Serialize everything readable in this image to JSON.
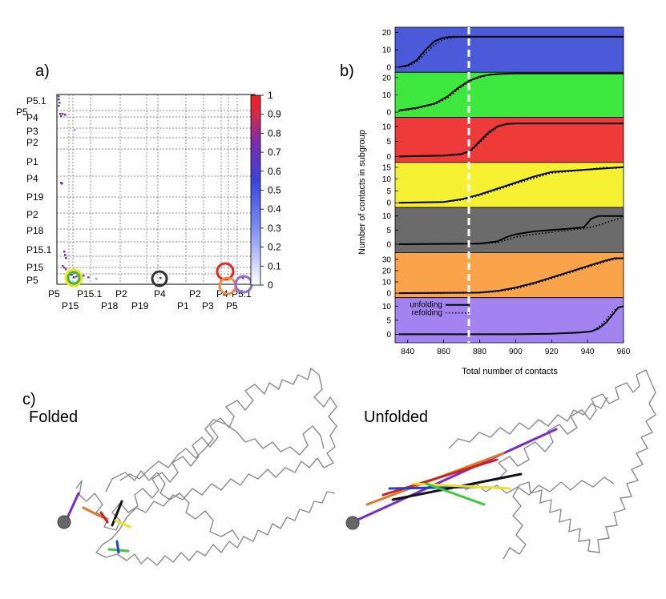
{
  "panel_labels": {
    "a": "a)",
    "b": "b)",
    "c": "c)"
  },
  "panel_a": {
    "y_labels": [
      {
        "text": "P5.1"
      },
      {
        "text": "P5"
      },
      {
        "text": "P4"
      },
      {
        "text": "P3"
      },
      {
        "text": "P2"
      },
      {
        "text": "P1"
      },
      {
        "text": "P4"
      },
      {
        "text": "P19"
      },
      {
        "text": "P2"
      },
      {
        "text": "P18"
      },
      {
        "text": "P15.1"
      },
      {
        "text": "P15"
      },
      {
        "text": "P5"
      }
    ],
    "x_labels_row1": [
      "P5",
      "P15.1",
      "P2",
      "P4",
      "P2",
      "P4",
      "P5.1"
    ],
    "x_labels_row2": [
      "P15",
      "P18",
      "P19",
      "P1",
      "P3",
      "P5"
    ],
    "colorbar_ticks": [
      "1",
      "0.9",
      "0.8",
      "0.7",
      "0.6",
      "0.5",
      "0.4",
      "0.3",
      "0.2",
      "0.1",
      "0"
    ],
    "circle_colors": [
      "#f2e21b",
      "#39b54a",
      "#333333",
      "#e8231d",
      "#f08a3c",
      "#8e6ad8"
    ]
  },
  "chart_data": {
    "type": "line",
    "xlabel": "Total number of contacts",
    "ylabel": "Number of contacts in subgroup",
    "xlim": [
      833,
      960
    ],
    "x_ticks": [
      "840",
      "860",
      "880",
      "900",
      "920",
      "940",
      "960"
    ],
    "vline_x": 874,
    "legend": {
      "unfolding": "unfolding",
      "refolding": "refolding"
    },
    "panels": [
      {
        "color": "#4a5ad8",
        "ylim": [
          -3,
          23
        ],
        "yticks": [
          "0",
          "10",
          "20"
        ],
        "ytick_values": [
          0,
          10,
          20
        ],
        "unfolding": {
          "x": [
            835,
            840,
            845,
            850,
            855,
            860,
            865,
            870,
            960
          ],
          "y": [
            0,
            1,
            4,
            10,
            15,
            17,
            17.5,
            17.5,
            17.5
          ]
        },
        "refolding": {
          "x": [
            835,
            840,
            845,
            850,
            855,
            860,
            865,
            870,
            960
          ],
          "y": [
            0,
            0.5,
            3,
            8,
            13,
            16,
            17,
            17.5,
            17.5
          ]
        }
      },
      {
        "color": "#3ee83e",
        "ylim": [
          -3,
          23
        ],
        "yticks": [
          "0",
          "10",
          "20"
        ],
        "ytick_values": [
          0,
          10,
          20
        ],
        "unfolding": {
          "x": [
            835,
            845,
            855,
            862,
            868,
            874,
            880,
            885,
            890,
            900,
            960
          ],
          "y": [
            1,
            2.5,
            5,
            9,
            14,
            18,
            20.5,
            21.5,
            22,
            22.3,
            22.3
          ]
        },
        "refolding": {
          "x": [
            835,
            845,
            855,
            862,
            868,
            874,
            880,
            885,
            890,
            900,
            960
          ],
          "y": [
            0.5,
            2,
            4.5,
            8,
            13,
            17.5,
            20,
            21.5,
            22,
            22.3,
            22.3
          ]
        }
      },
      {
        "color": "#ee3a38",
        "ylim": [
          -2,
          13
        ],
        "yticks": [
          "0",
          "5",
          "10"
        ],
        "ytick_values": [
          0,
          5,
          10
        ],
        "unfolding": {
          "x": [
            835,
            860,
            870,
            875,
            880,
            885,
            890,
            895,
            900,
            960
          ],
          "y": [
            0,
            0.3,
            0.8,
            2,
            5,
            8,
            10,
            10.8,
            11,
            11
          ]
        },
        "refolding": {
          "x": [
            835,
            860,
            870,
            875,
            880,
            885,
            890,
            895,
            900,
            960
          ],
          "y": [
            0,
            0.2,
            0.6,
            1.8,
            4.5,
            7.5,
            9.8,
            10.8,
            11,
            11
          ]
        }
      },
      {
        "color": "#f5f032",
        "ylim": [
          -2,
          17
        ],
        "yticks": [
          "0",
          "5",
          "10",
          "15"
        ],
        "ytick_values": [
          0,
          5,
          10,
          15
        ],
        "unfolding": {
          "x": [
            835,
            860,
            870,
            880,
            890,
            900,
            910,
            920,
            930,
            940,
            950,
            955,
            960
          ],
          "y": [
            0,
            0.3,
            1.5,
            3.5,
            6,
            8.5,
            11,
            13,
            13.5,
            14,
            14.5,
            14.8,
            15
          ]
        },
        "refolding": {
          "x": [
            835,
            860,
            870,
            880,
            890,
            900,
            910,
            920,
            930,
            940,
            950,
            955,
            960
          ],
          "y": [
            0,
            0.3,
            1.2,
            3,
            5.5,
            8,
            10.3,
            12.5,
            13.2,
            14,
            15,
            14.5,
            15
          ]
        }
      },
      {
        "color": "#6b6b6b",
        "ylim": [
          -3,
          13
        ],
        "yticks": [
          "0",
          "5",
          "10"
        ],
        "ytick_values": [
          0,
          5,
          10
        ],
        "unfolding": {
          "x": [
            835,
            880,
            890,
            895,
            900,
            910,
            920,
            930,
            938,
            942,
            946,
            950,
            960
          ],
          "y": [
            0,
            0.2,
            1,
            2.5,
            3.5,
            4.5,
            5,
            5.5,
            6,
            9,
            10,
            10,
            10
          ]
        },
        "refolding": {
          "x": [
            835,
            880,
            890,
            895,
            900,
            910,
            920,
            930,
            938,
            945,
            952,
            960
          ],
          "y": [
            0,
            0.2,
            0.6,
            1.5,
            2.5,
            3.5,
            4.2,
            5,
            5.5,
            6.5,
            8,
            9.5
          ]
        }
      },
      {
        "color": "#f9a34a",
        "ylim": [
          -4,
          36
        ],
        "yticks": [
          "0",
          "10",
          "20",
          "30"
        ],
        "ytick_values": [
          0,
          10,
          20,
          30
        ],
        "unfolding": {
          "x": [
            835,
            880,
            890,
            900,
            910,
            920,
            930,
            940,
            950,
            955,
            960
          ],
          "y": [
            0,
            0.5,
            2,
            5,
            9,
            14,
            19,
            24,
            29,
            31,
            31
          ]
        },
        "refolding": {
          "x": [
            835,
            880,
            890,
            900,
            910,
            920,
            930,
            940,
            950,
            955,
            960
          ],
          "y": [
            0,
            0.3,
            1.5,
            4,
            8,
            13,
            18,
            23,
            28,
            30,
            31
          ]
        }
      },
      {
        "color": "#a383f0",
        "ylim": [
          -3,
          13
        ],
        "yticks": [
          "0",
          "5",
          "10"
        ],
        "ytick_values": [
          0,
          5,
          10
        ],
        "unfolding": {
          "x": [
            835,
            900,
            920,
            935,
            942,
            946,
            950,
            954,
            957,
            960
          ],
          "y": [
            0,
            0,
            0.2,
            0.6,
            1,
            2,
            4,
            7,
            9.5,
            10
          ]
        },
        "refolding": {
          "x": [
            835,
            900,
            920,
            935,
            942,
            946,
            950,
            954,
            957,
            960
          ],
          "y": [
            0,
            0,
            0.2,
            0.5,
            1,
            2.5,
            5,
            8,
            9.5,
            10
          ]
        }
      }
    ]
  },
  "panel_c": {
    "folded_title": "Folded",
    "unfolded_title": "Unfolded"
  }
}
